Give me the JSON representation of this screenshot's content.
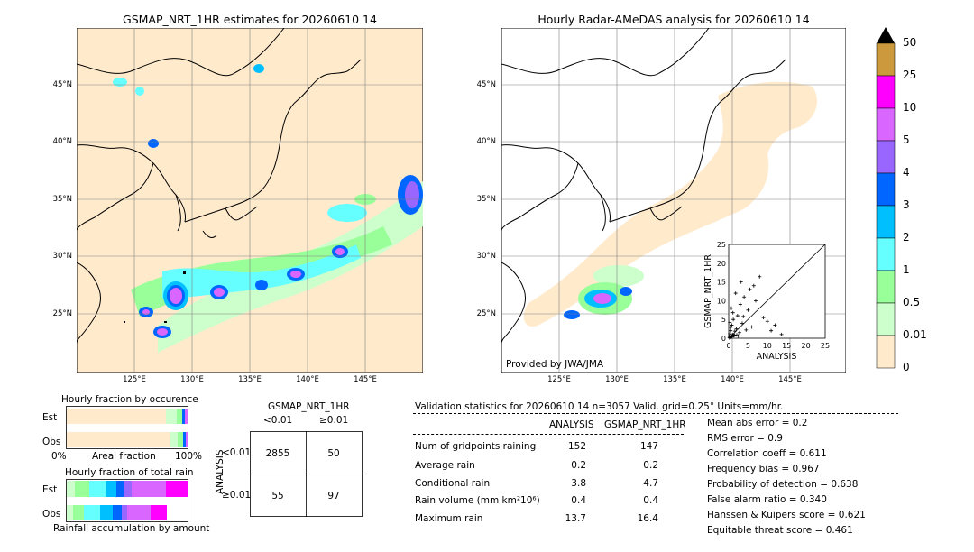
{
  "left_map": {
    "title": "GSMAP_NRT_1HR estimates for 20260610 14",
    "lat_labels": [
      "45°N",
      "40°N",
      "35°N",
      "30°N",
      "25°N"
    ],
    "lon_labels": [
      "125°E",
      "130°E",
      "135°E",
      "140°E",
      "145°E"
    ]
  },
  "right_map": {
    "title": "Hourly Radar-AMeDAS analysis for 20260610 14",
    "lat_labels": [
      "45°N",
      "40°N",
      "35°N",
      "30°N",
      "25°N"
    ],
    "lon_labels": [
      "125°E",
      "130°E",
      "135°E",
      "140°E",
      "145°E"
    ],
    "credit": "Provided by JWA/JMA"
  },
  "scatter": {
    "xlabel": "ANALYSIS",
    "ylabel": "GSMAP_NRT_1HR",
    "ticks": [
      "0",
      "5",
      "10",
      "15",
      "20",
      "25"
    ]
  },
  "colorbar": {
    "labels": [
      "50",
      "25",
      "10",
      "5",
      "4",
      "3",
      "2",
      "1",
      "0.5",
      "0.01",
      "0"
    ],
    "colors": [
      "#cc9a3d",
      "#ff00ff",
      "#d966ff",
      "#9966ff",
      "#0066ff",
      "#00bfff",
      "#66ffff",
      "#99ff99",
      "#ccffcc",
      "#ffeacc"
    ]
  },
  "fraction_occurrence": {
    "title": "Hourly fraction by occurence",
    "row_labels": [
      "Est",
      "Obs"
    ],
    "axis_left": "0%",
    "axis_mid": "Areal fraction",
    "axis_right": "100%"
  },
  "fraction_total": {
    "title": "Hourly fraction of total rain",
    "row_labels": [
      "Est",
      "Obs"
    ],
    "footer": "Rainfall accumulation by amount"
  },
  "contingency": {
    "title": "GSMAP_NRT_1HR",
    "col_labels": [
      "<0.01",
      "≥0.01"
    ],
    "row_axis": "ANALYSIS",
    "row_labels": [
      "<0.01",
      "≥0.01"
    ],
    "cells": [
      [
        "2855",
        "50"
      ],
      [
        "55",
        "97"
      ]
    ]
  },
  "validation": {
    "header": "Validation statistics for 20260610 14  n=3057 Valid. grid=0.25°  Units=mm/hr.",
    "col_analysis": "ANALYSIS",
    "col_gsmap": "GSMAP_NRT_1HR",
    "rows": [
      {
        "label": "Num of gridpoints raining",
        "analysis": "152",
        "gsmap": "147"
      },
      {
        "label": "Average rain",
        "analysis": "0.2",
        "gsmap": "0.2"
      },
      {
        "label": "Conditional rain",
        "analysis": "3.8",
        "gsmap": "4.7"
      },
      {
        "label": "Rain volume (mm km²10⁶)",
        "analysis": "0.4",
        "gsmap": "0.4"
      },
      {
        "label": "Maximum rain",
        "analysis": "13.7",
        "gsmap": "16.4"
      }
    ],
    "scores": [
      "Mean abs error =    0.2",
      "RMS error =    0.9",
      "Correlation coeff =  0.611",
      "Frequency bias =  0.967",
      "Probability of detection =  0.638",
      "False alarm ratio =  0.340",
      "Hanssen & Kuipers score =  0.621",
      "Equitable threat score =  0.461"
    ]
  },
  "chart_data": {
    "type": "scatter",
    "xlabel": "ANALYSIS",
    "ylabel": "GSMAP_NRT_1HR",
    "xlim": [
      0,
      25
    ],
    "ylim": [
      0,
      25
    ],
    "x": [
      0.2,
      0.3,
      0.5,
      0.6,
      0.8,
      1.0,
      1.2,
      1.5,
      2.0,
      2.3,
      2.8,
      3.0,
      3.5,
      4.0,
      4.5,
      5.0,
      5.5,
      6.0,
      7.0,
      8.0,
      9.0,
      10.0,
      11.0,
      12.0,
      13.7,
      0.4,
      0.7,
      1.8,
      2.5,
      3.2,
      0.3,
      0.9,
      1.1,
      1.6,
      2.1,
      0.5,
      1.3,
      3.8,
      6.5,
      0.2
    ],
    "y": [
      0.5,
      1.2,
      2.0,
      0.3,
      3.5,
      1.0,
      5.0,
      0.8,
      2.5,
      6.0,
      1.5,
      9.0,
      4.0,
      11.0,
      2.2,
      7.5,
      13.0,
      3.0,
      10.0,
      16.4,
      5.5,
      4.5,
      2.0,
      3.5,
      1.0,
      0.2,
      8.0,
      12.0,
      0.6,
      15.0,
      4.2,
      0.4,
      6.8,
      1.9,
      0.9,
      2.9,
      0.7,
      5.8,
      14.0,
      0.1
    ]
  }
}
